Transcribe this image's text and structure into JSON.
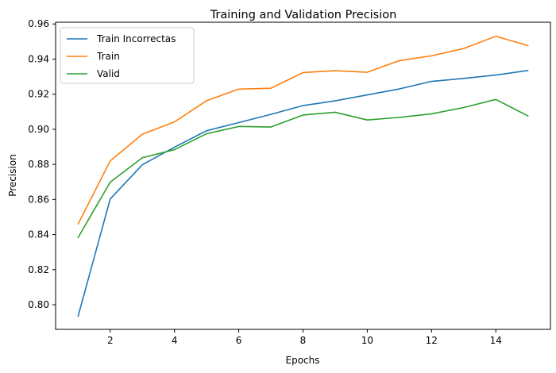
{
  "chart_data": {
    "type": "line",
    "title": "Training and Validation Precision",
    "xlabel": "Epochs",
    "ylabel": "Precision",
    "x": [
      1,
      2,
      3,
      4,
      5,
      6,
      7,
      8,
      9,
      10,
      11,
      12,
      13,
      14,
      15
    ],
    "xlim": [
      0.3,
      15.7
    ],
    "ylim": [
      0.786,
      0.961
    ],
    "xticks": [
      2,
      4,
      6,
      8,
      10,
      12,
      14
    ],
    "yticks": [
      0.8,
      0.82,
      0.84,
      0.86,
      0.88,
      0.9,
      0.92,
      0.94,
      0.96
    ],
    "ytick_labels": [
      "0.80",
      "0.82",
      "0.84",
      "0.86",
      "0.88",
      "0.90",
      "0.92",
      "0.94",
      "0.96"
    ],
    "grid": false,
    "legend_position": "top-left",
    "series": [
      {
        "name": "Train Incorrectas",
        "color": "#1f77b4",
        "values": [
          0.7935,
          0.8603,
          0.8798,
          0.8898,
          0.8992,
          0.9038,
          0.9085,
          0.9135,
          0.9162,
          0.9196,
          0.923,
          0.9273,
          0.929,
          0.9309,
          0.9335
        ]
      },
      {
        "name": "Train",
        "color": "#ff7f0e",
        "values": [
          0.846,
          0.882,
          0.8972,
          0.9042,
          0.9163,
          0.9229,
          0.9234,
          0.9323,
          0.9334,
          0.9325,
          0.9391,
          0.9419,
          0.946,
          0.953,
          0.9477
        ]
      },
      {
        "name": "Valid",
        "color": "#2ca02c",
        "values": [
          0.8383,
          0.8699,
          0.8838,
          0.8884,
          0.8975,
          0.9016,
          0.9013,
          0.9081,
          0.9097,
          0.9053,
          0.9068,
          0.9088,
          0.9124,
          0.917,
          0.9076
        ]
      }
    ]
  }
}
